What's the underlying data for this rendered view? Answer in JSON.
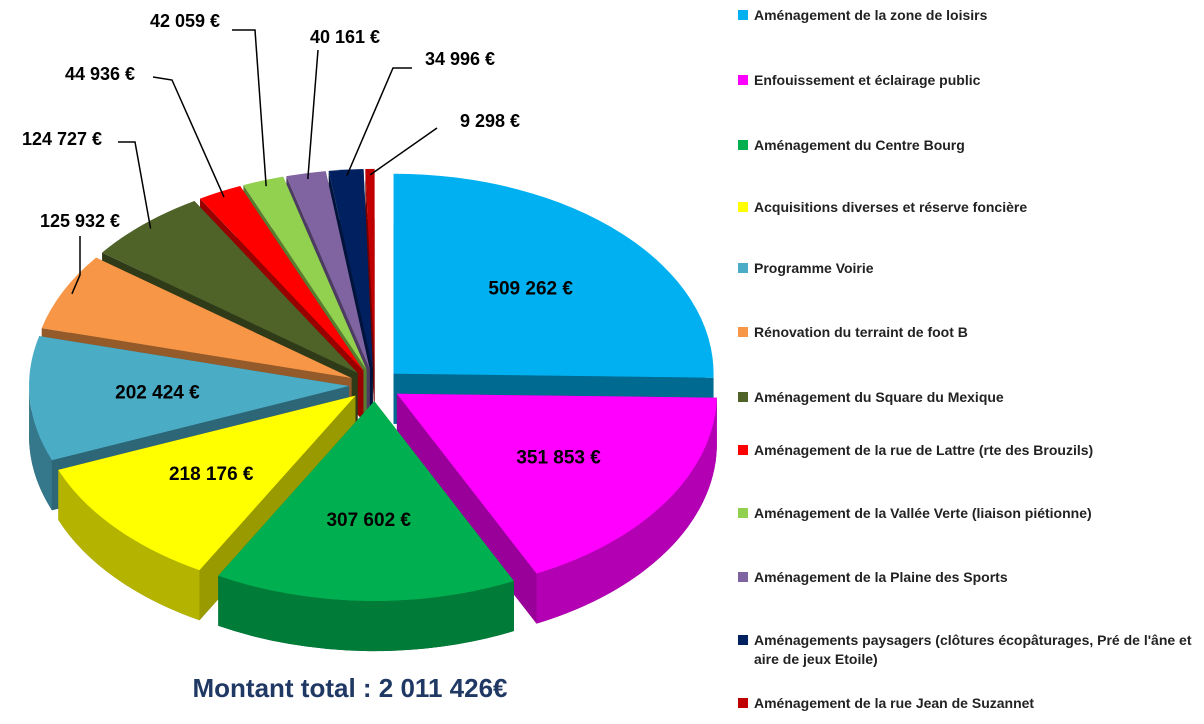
{
  "chart_data": {
    "type": "pie",
    "categories": [
      "Aménagement de la zone de loisirs",
      "Enfouissement et éclairage public",
      "Aménagement du Centre Bourg",
      "Acquisitions diverses et réserve foncière",
      "Programme Voirie",
      "Rénovation du terraint de foot B",
      "Aménagement du Square du Mexique",
      "Aménagement de la rue de Lattre (rte des Brouzils)",
      "Aménagement de la Vallée Verte (liaison piétionne)",
      "Aménagement de la Plaine des Sports",
      "Aménagements paysagers (clôtures écopâturages, Pré de l'âne et aire de jeux Etoile)",
      "Aménagement de la rue Jean de Suzannet"
    ],
    "values": [
      509262,
      351853,
      307602,
      218176,
      202424,
      125932,
      124727,
      44936,
      42059,
      40161,
      34996,
      9298
    ],
    "value_labels": [
      "509 262 €",
      "351 853 €",
      "307 602 €",
      "218 176 €",
      "202 424 €",
      "125 932 €",
      "124 727 €",
      "44 936 €",
      "42 059 €",
      "40 161 €",
      "34 996 €",
      "9 298 €"
    ],
    "colors": [
      "#00b0f0",
      "#ff00ff",
      "#00b050",
      "#ffff00",
      "#4bacc6",
      "#f79646",
      "#4f6228",
      "#ff0000",
      "#92d050",
      "#8064a2",
      "#002060",
      "#c00000"
    ],
    "annotation": "Montant total : 2 011 426€",
    "legend": "right"
  }
}
